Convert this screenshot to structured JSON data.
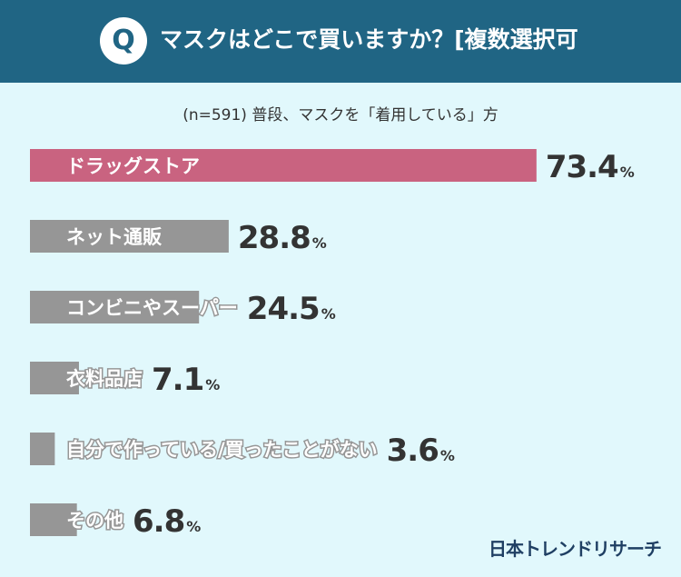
{
  "header": {
    "q_label": "Q",
    "question": "マスクはどこで買いますか？[複数選択可"
  },
  "subtitle": "(n=591) 普段、マスクを「着用している」方",
  "brand": "日本トレンドリサーチ",
  "colors": {
    "header_bg": "#206584",
    "background": "#e1f8fc",
    "bar_highlight": "#c96380",
    "bar_default": "#969696",
    "label_text": "#ffffff",
    "value_text": "#333333"
  },
  "chart_data": {
    "type": "bar",
    "orientation": "horizontal",
    "unit": "%",
    "xlim": [
      0,
      100
    ],
    "grid": false,
    "categories": [
      "ドラッグストア",
      "ネット通販",
      "コンビニやスーパー",
      "衣料品店",
      "自分で作っている/買ったことがない",
      "その他"
    ],
    "values": [
      73.4,
      28.8,
      24.5,
      7.1,
      3.6,
      6.8
    ],
    "value_labels": [
      "73.4",
      "28.8",
      "24.5",
      "7.1",
      "3.6",
      "6.8"
    ],
    "highlight_index": 0
  }
}
